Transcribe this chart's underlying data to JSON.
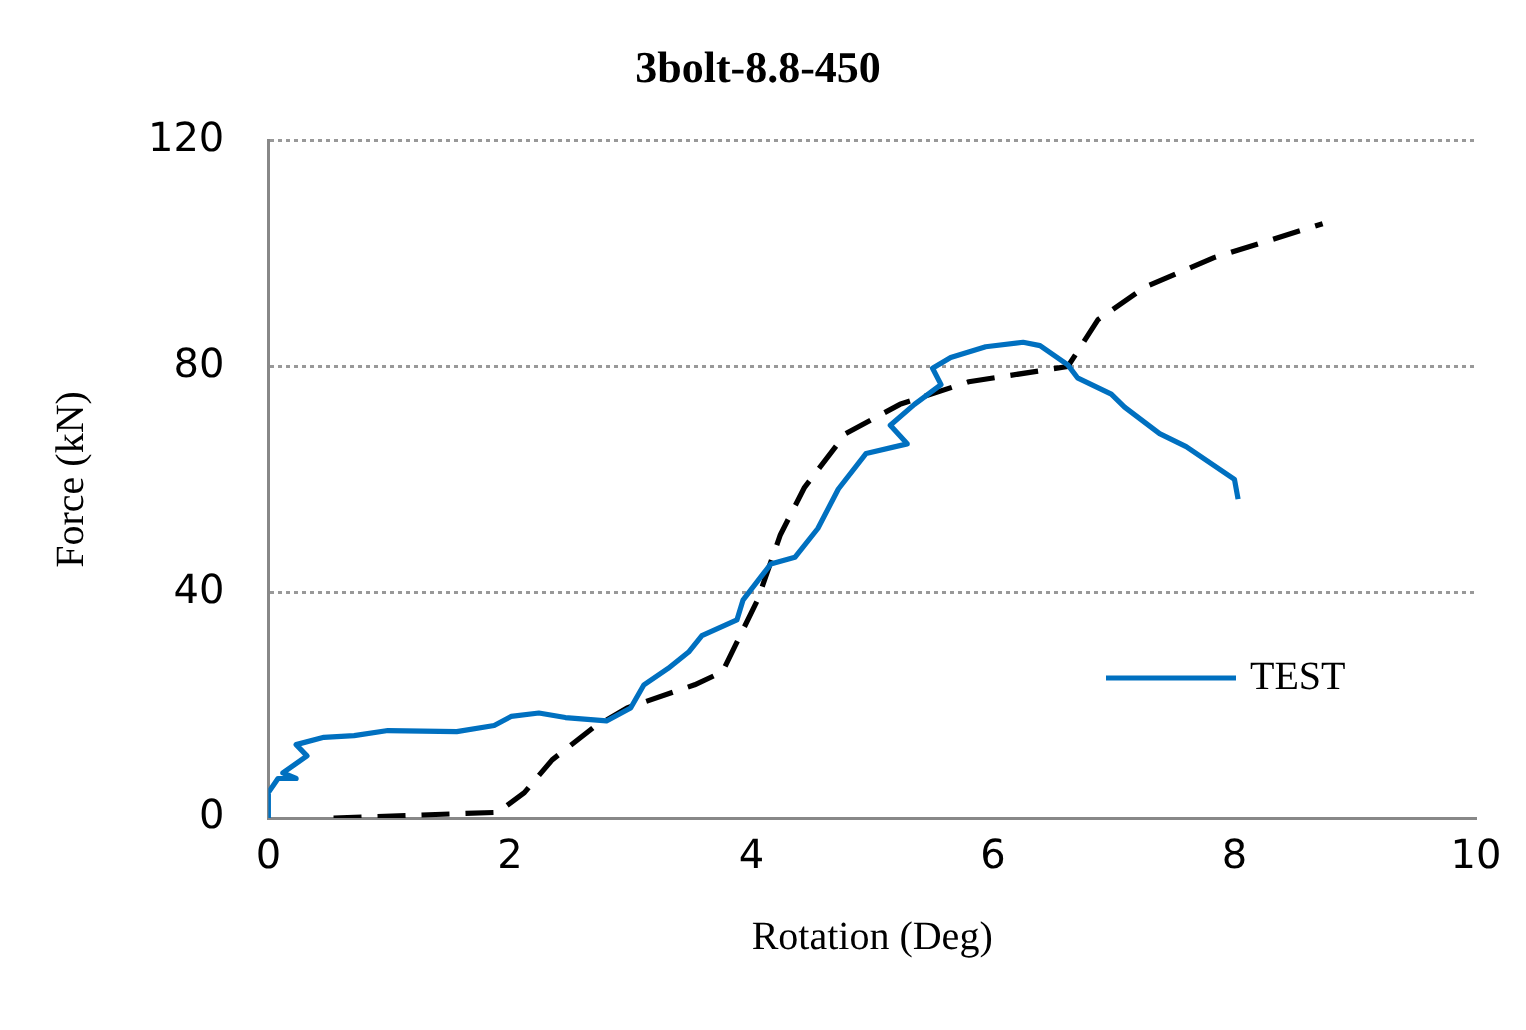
{
  "chart_data": {
    "type": "line",
    "title": "3bolt-8.8-450",
    "xlabel": "Rotation (Deg)",
    "ylabel": "Force (kN)",
    "xlim": [
      0,
      10
    ],
    "xticks": [
      0,
      2,
      4,
      6,
      8,
      10
    ],
    "ylim": [
      0,
      120
    ],
    "yticks": [
      0,
      40,
      80,
      120
    ],
    "grid": "y",
    "legend": "bottom right",
    "marker": "none",
    "series": [
      {
        "name": "TEST",
        "color": "#0070c0",
        "line_style": "solid",
        "x": [
          0,
          0,
          0.08,
          0.23,
          0.12,
          0.32,
          0.23,
          0.46,
          0.71,
          0.99,
          1.56,
          1.87,
          2.01,
          2.24,
          2.46,
          2.8,
          3.0,
          3.11,
          3.31,
          3.48,
          3.59,
          3.88,
          3.93,
          4.16,
          4.36,
          4.55,
          4.72,
          4.95,
          5.29,
          5.15,
          5.35,
          5.57,
          5.5,
          5.65,
          5.94,
          6.25,
          6.39,
          6.62,
          6.7,
          6.98,
          7.09,
          7.38,
          7.6,
          8.0,
          8.03
        ],
        "values": [
          0,
          4.5,
          7,
          7,
          8,
          11,
          13,
          14.3,
          14.6,
          15.5,
          15.3,
          16.4,
          18,
          18.6,
          17.8,
          17.2,
          19.5,
          23.6,
          26.5,
          29.4,
          32.3,
          35.1,
          38.6,
          45,
          46.2,
          51.3,
          58.3,
          64.6,
          66.3,
          69.6,
          73.3,
          76.8,
          79.7,
          81.6,
          83.5,
          84.3,
          83.7,
          80.3,
          78,
          75.1,
          72.8,
          68.1,
          65.8,
          60,
          56.5
        ]
      },
      {
        "color": "#000000",
        "line_style": "dashed",
        "x": [
          0.54,
          1.9,
          2.12,
          2.35,
          2.69,
          2.97,
          3.53,
          3.76,
          4.05,
          4.24,
          4.44,
          4.78,
          5.23,
          5.8,
          6.62,
          6.87,
          7.26,
          7.83,
          8.73
        ],
        "values": [
          0,
          1,
          4.5,
          10.3,
          16,
          19.5,
          23.6,
          25.9,
          38.6,
          50.2,
          58.6,
          68.1,
          73.3,
          77.3,
          80,
          88.3,
          94.1,
          99.3,
          105.3
        ]
      }
    ]
  }
}
